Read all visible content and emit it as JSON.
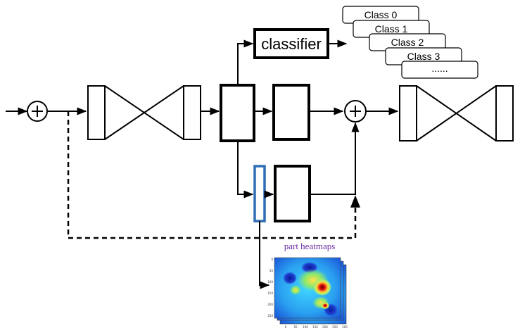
{
  "classifier": {
    "label": "classifier"
  },
  "classes": [
    "Class  0",
    "Class  1",
    "Class  2",
    "Class  3",
    "......"
  ],
  "heatmaps": {
    "title": "part heatmaps",
    "y_ticks": [
      "0",
      "50",
      "100",
      "150",
      "200",
      "250"
    ],
    "x_ticks": [
      "0",
      "50",
      "100",
      "150",
      "200",
      "250",
      "300"
    ]
  },
  "colors": {
    "line": "#000000",
    "attention_box": "#2f6db5"
  }
}
